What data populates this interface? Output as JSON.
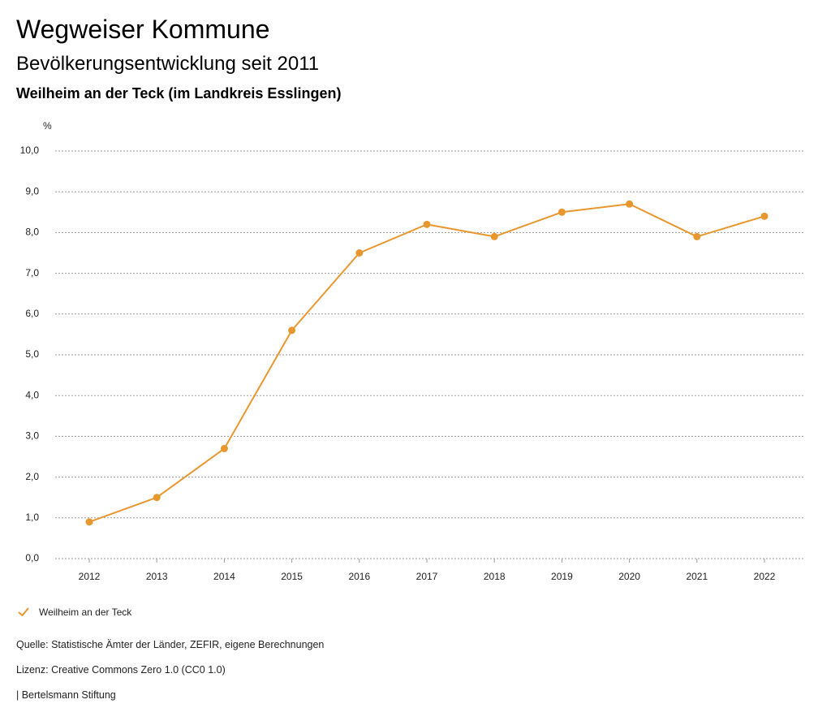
{
  "header": {
    "title": "Wegweiser Kommune",
    "subtitle": "Bevölkerungsentwicklung seit 2011",
    "place": "Weilheim an der Teck (im Landkreis Esslingen)"
  },
  "chart_data": {
    "type": "line",
    "ylabel": "%",
    "xlabel": "",
    "x": [
      "2012",
      "2013",
      "2014",
      "2015",
      "2016",
      "2017",
      "2018",
      "2019",
      "2020",
      "2021",
      "2022"
    ],
    "ylim": [
      0,
      10
    ],
    "yticks": [
      "0,0",
      "1,0",
      "2,0",
      "3,0",
      "4,0",
      "5,0",
      "6,0",
      "7,0",
      "8,0",
      "9,0",
      "10,0"
    ],
    "grid": true,
    "legend_position": "bottom-left",
    "series": [
      {
        "name": "Weilheim an der Teck",
        "color": "#E8972F",
        "values": [
          0.9,
          1.5,
          2.7,
          5.6,
          7.5,
          8.2,
          7.9,
          8.5,
          8.7,
          7.9,
          8.4
        ]
      }
    ]
  },
  "legend": {
    "label": "Weilheim an der Teck",
    "icon": "check-icon"
  },
  "footer": {
    "source": "Quelle: Statistische Ämter der Länder, ZEFIR, eigene Berechnungen",
    "license": "Lizenz: Creative Commons Zero 1.0 (CC0 1.0)",
    "publisher": "| Bertelsmann Stiftung"
  }
}
